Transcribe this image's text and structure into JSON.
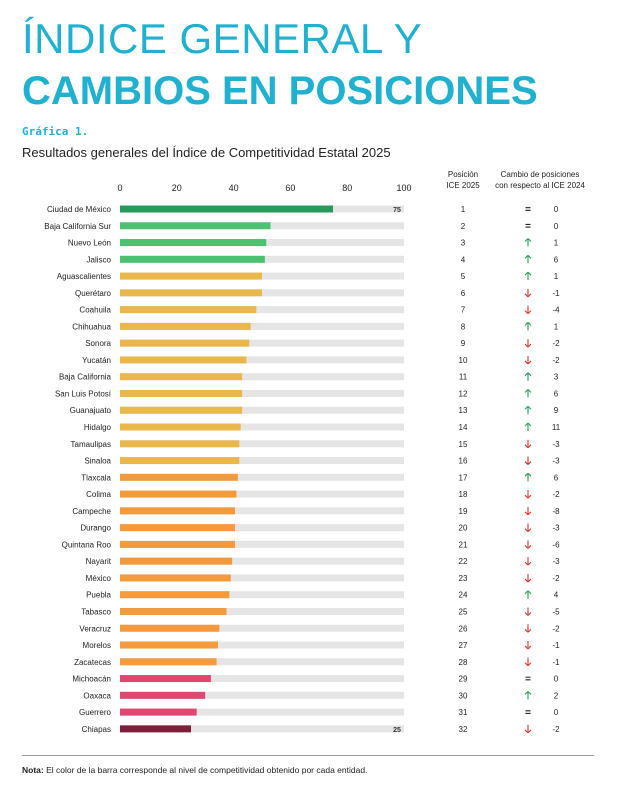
{
  "title_line1": "ÍNDICE GENERAL Y",
  "title_line2": "CAMBIOS EN POSICIONES",
  "figure_label": "Gráfica 1.",
  "subtitle": "Resultados generales del Índice de Competitividad Estatal 2025",
  "header_position": [
    "Posición",
    "ICE 2025"
  ],
  "header_change": [
    "Cambio de posiciones",
    "con respecto al ICE 2024"
  ],
  "note_label": "Nota:",
  "note_text": "El color de la barra corresponde al nivel de competitividad obtenido por cada entidad.",
  "colors": {
    "dark_green": "#2a9a5c",
    "green": "#4cc172",
    "yellow": "#eab84a",
    "orange": "#f29a3c",
    "pink": "#e0466f",
    "maroon": "#7d1f3a",
    "track": "#e5e5e5",
    "arrow_up": "#2aa05a",
    "arrow_down": "#d9362f"
  },
  "chart_data": {
    "type": "bar",
    "orientation": "horizontal",
    "xlim": [
      0,
      100
    ],
    "xticks": [
      "0",
      "20",
      "40",
      "60",
      "80",
      "100"
    ],
    "value_labels": {
      "Ciudad de México": "75",
      "Chiapas": "25"
    },
    "rows": [
      {
        "state": "Ciudad de México",
        "value": 75,
        "level": "dark_green",
        "position": "1",
        "dir": "same",
        "change": "0"
      },
      {
        "state": "Baja California Sur",
        "value": 53,
        "level": "green",
        "position": "2",
        "dir": "same",
        "change": "0"
      },
      {
        "state": "Nuevo León",
        "value": 51.5,
        "level": "green",
        "position": "3",
        "dir": "up",
        "change": "1"
      },
      {
        "state": "Jalisco",
        "value": 51,
        "level": "green",
        "position": "4",
        "dir": "up",
        "change": "6"
      },
      {
        "state": "Aguascalientes",
        "value": 50,
        "level": "yellow",
        "position": "5",
        "dir": "up",
        "change": "1"
      },
      {
        "state": "Querétaro",
        "value": 50,
        "level": "yellow",
        "position": "6",
        "dir": "down",
        "change": "-1"
      },
      {
        "state": "Coahuila",
        "value": 48,
        "level": "yellow",
        "position": "7",
        "dir": "down",
        "change": "-4"
      },
      {
        "state": "Chihuahua",
        "value": 46,
        "level": "yellow",
        "position": "8",
        "dir": "up",
        "change": "1"
      },
      {
        "state": "Sonora",
        "value": 45.5,
        "level": "yellow",
        "position": "9",
        "dir": "down",
        "change": "-2"
      },
      {
        "state": "Yucatán",
        "value": 44.5,
        "level": "yellow",
        "position": "10",
        "dir": "down",
        "change": "-2"
      },
      {
        "state": "Baja California",
        "value": 43,
        "level": "yellow",
        "position": "11",
        "dir": "up",
        "change": "3"
      },
      {
        "state": "San Luis Potosí",
        "value": 43,
        "level": "yellow",
        "position": "12",
        "dir": "up",
        "change": "6"
      },
      {
        "state": "Guanajuato",
        "value": 43,
        "level": "yellow",
        "position": "13",
        "dir": "up",
        "change": "9"
      },
      {
        "state": "Hidalgo",
        "value": 42.5,
        "level": "yellow",
        "position": "14",
        "dir": "up",
        "change": "11"
      },
      {
        "state": "Tamaulipas",
        "value": 42,
        "level": "yellow",
        "position": "15",
        "dir": "down",
        "change": "-3"
      },
      {
        "state": "Sinaloa",
        "value": 42,
        "level": "yellow",
        "position": "16",
        "dir": "down",
        "change": "-3"
      },
      {
        "state": "Tlaxcala",
        "value": 41.5,
        "level": "orange",
        "position": "17",
        "dir": "up",
        "change": "6"
      },
      {
        "state": "Colima",
        "value": 41,
        "level": "orange",
        "position": "18",
        "dir": "down",
        "change": "-2"
      },
      {
        "state": "Campeche",
        "value": 40.5,
        "level": "orange",
        "position": "19",
        "dir": "down",
        "change": "-8"
      },
      {
        "state": "Durango",
        "value": 40.5,
        "level": "orange",
        "position": "20",
        "dir": "down",
        "change": "-3"
      },
      {
        "state": "Quintana Roo",
        "value": 40.5,
        "level": "orange",
        "position": "21",
        "dir": "down",
        "change": "-6"
      },
      {
        "state": "Nayarit",
        "value": 39.5,
        "level": "orange",
        "position": "22",
        "dir": "down",
        "change": "-3"
      },
      {
        "state": "México",
        "value": 39,
        "level": "orange",
        "position": "23",
        "dir": "down",
        "change": "-2"
      },
      {
        "state": "Puebla",
        "value": 38.5,
        "level": "orange",
        "position": "24",
        "dir": "up",
        "change": "4"
      },
      {
        "state": "Tabasco",
        "value": 37.5,
        "level": "orange",
        "position": "25",
        "dir": "down",
        "change": "-5"
      },
      {
        "state": "Veracruz",
        "value": 35,
        "level": "orange",
        "position": "26",
        "dir": "down",
        "change": "-2"
      },
      {
        "state": "Morelos",
        "value": 34.5,
        "level": "orange",
        "position": "27",
        "dir": "down",
        "change": "-1"
      },
      {
        "state": "Zacatecas",
        "value": 34,
        "level": "orange",
        "position": "28",
        "dir": "down",
        "change": "-1"
      },
      {
        "state": "Michoacán",
        "value": 32,
        "level": "pink",
        "position": "29",
        "dir": "same",
        "change": "0"
      },
      {
        "state": "Oaxaca",
        "value": 30,
        "level": "pink",
        "position": "30",
        "dir": "up",
        "change": "2"
      },
      {
        "state": "Guerrero",
        "value": 27,
        "level": "pink",
        "position": "31",
        "dir": "same",
        "change": "0"
      },
      {
        "state": "Chiapas",
        "value": 25,
        "level": "maroon",
        "position": "32",
        "dir": "down",
        "change": "-2"
      }
    ]
  }
}
